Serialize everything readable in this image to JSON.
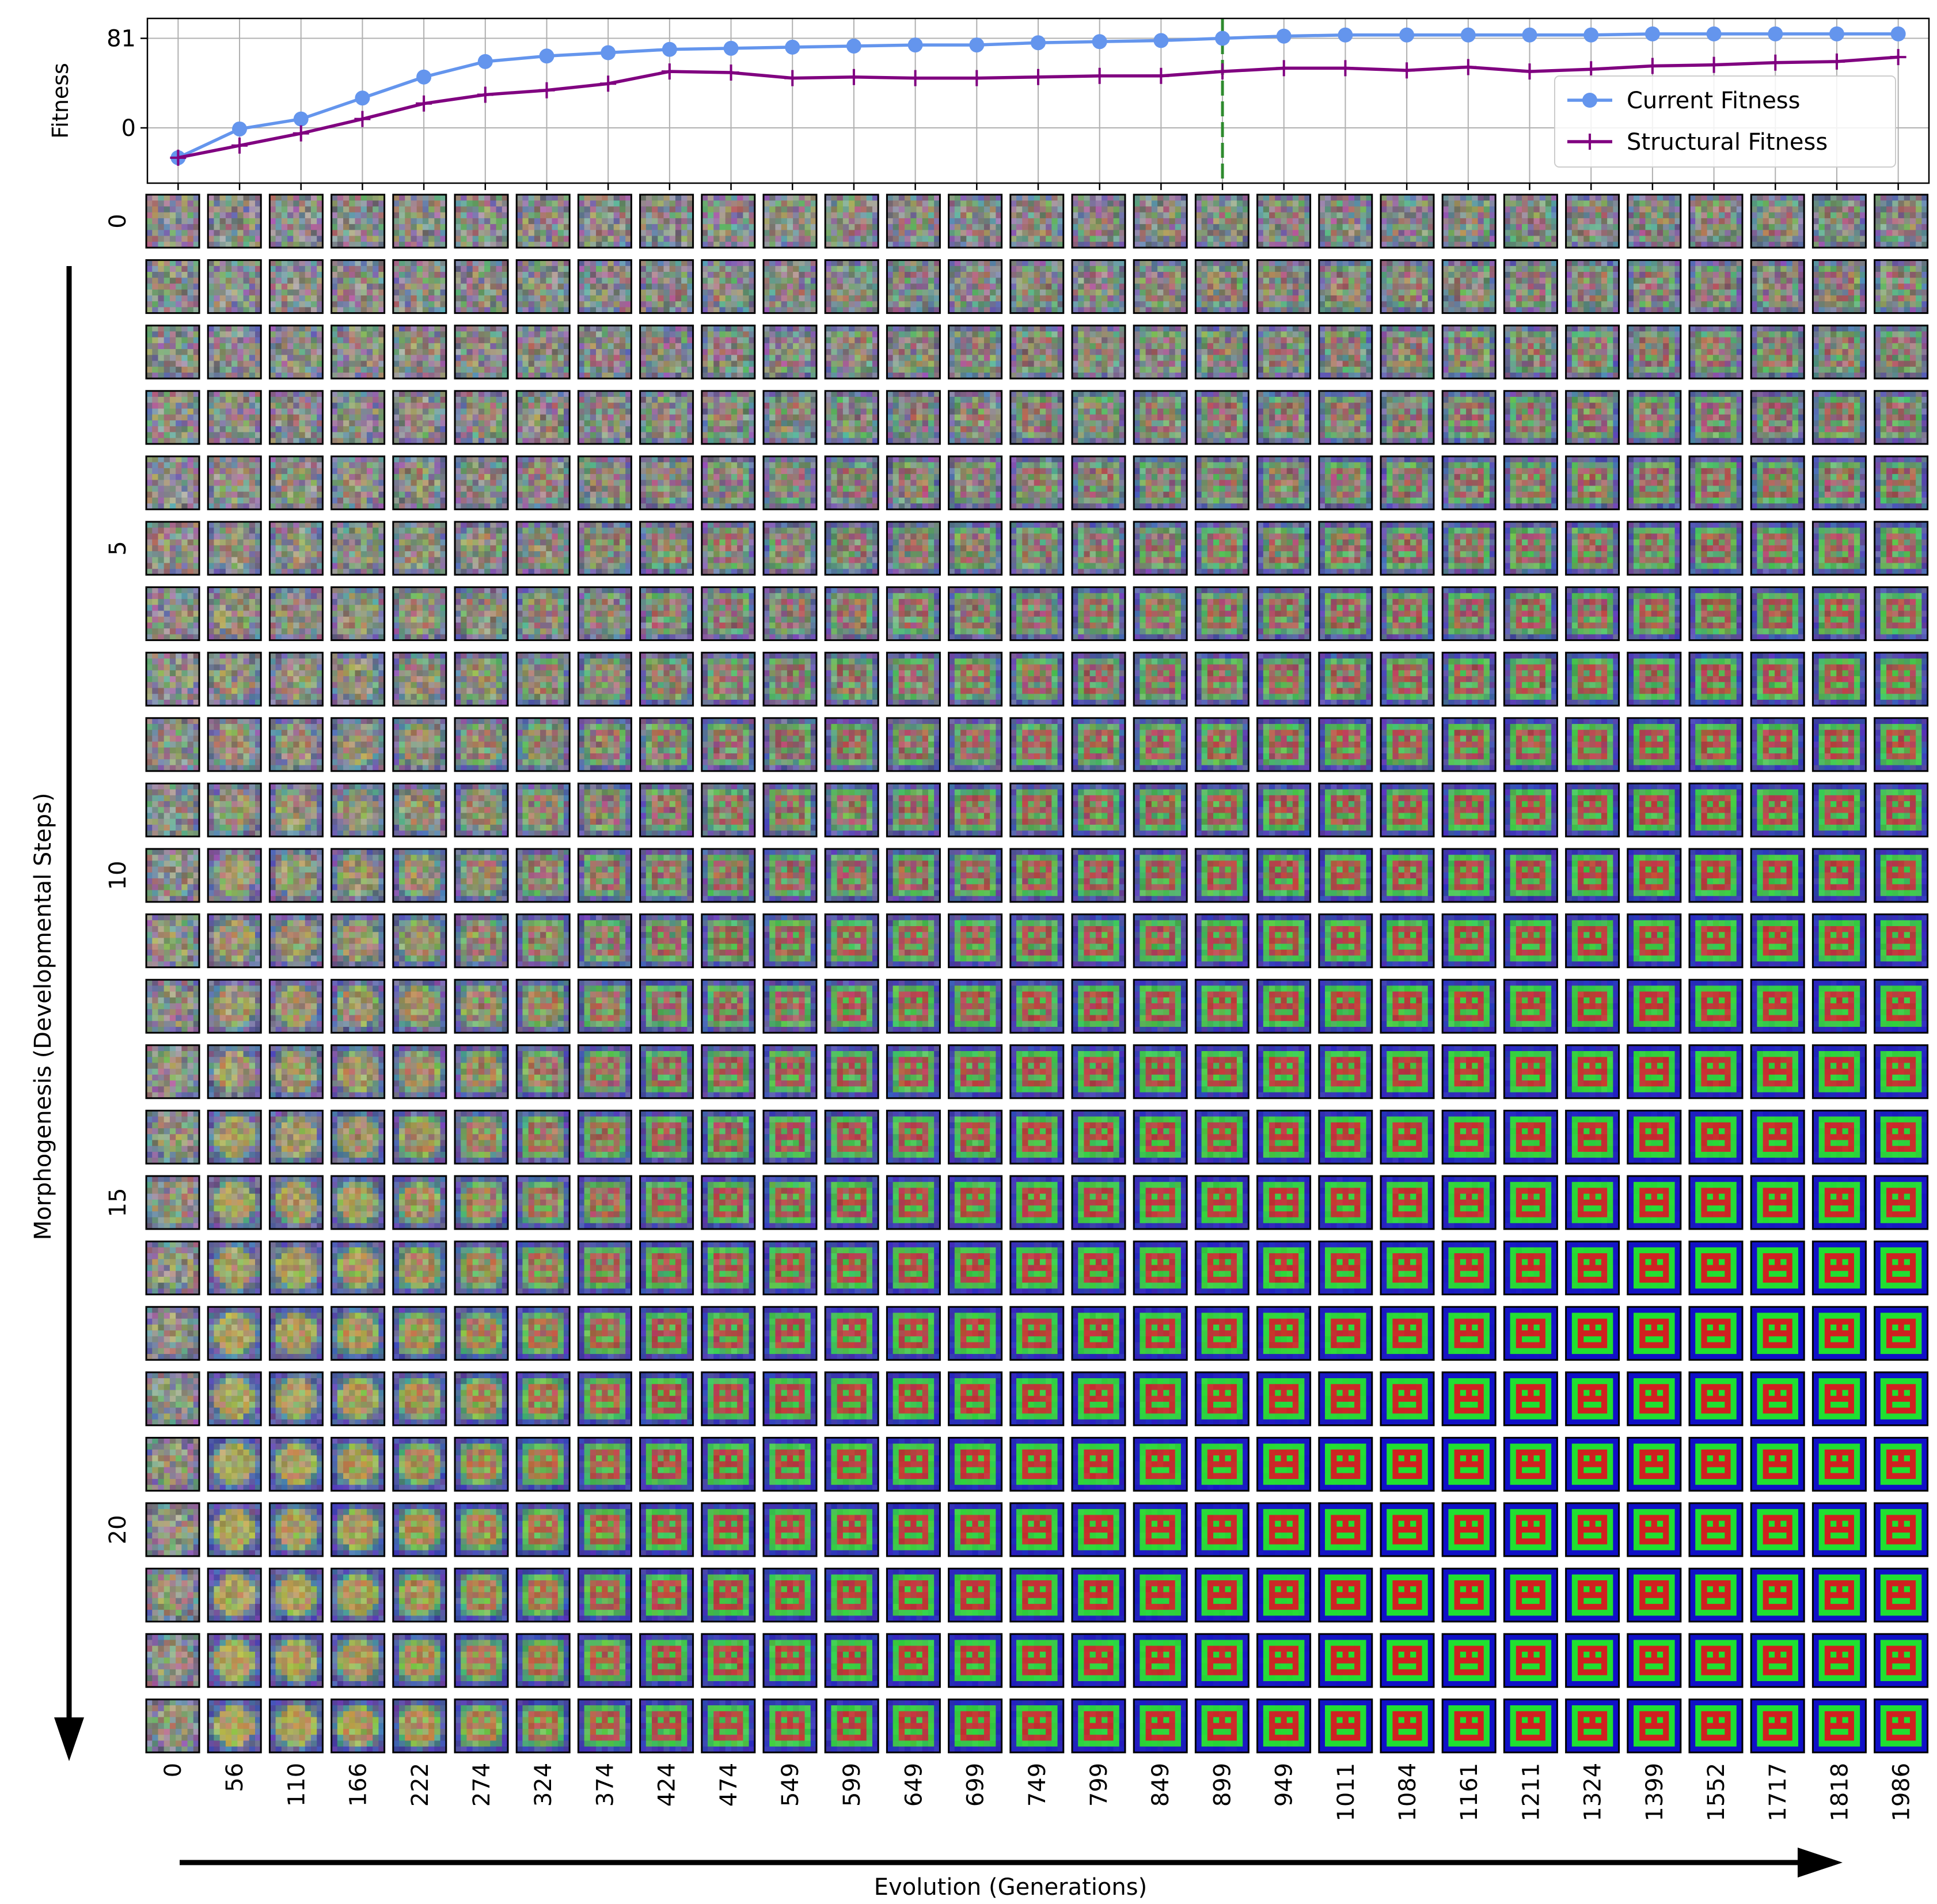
{
  "chart_data": [
    {
      "type": "line",
      "title": "",
      "xlabel": "",
      "ylabel": "Fitness",
      "y_tick_labels": [
        "0",
        "81"
      ],
      "y_ticks": [
        0,
        81
      ],
      "ylim": [
        -50,
        99
      ],
      "grid": true,
      "legend_position": "right",
      "x_index_range": [
        -0.5,
        28.5
      ],
      "x": [
        0,
        56,
        110,
        166,
        222,
        274,
        324,
        374,
        424,
        474,
        549,
        599,
        649,
        699,
        749,
        799,
        849,
        899,
        949,
        1011,
        1084,
        1161,
        1211,
        1324,
        1399,
        1552,
        1717,
        1818,
        1986
      ],
      "series": [
        {
          "name": "Current Fitness",
          "color": "#6495ED",
          "marker": "circle",
          "values": [
            -27,
            -1,
            8,
            27,
            46,
            60,
            65,
            68,
            71,
            72,
            73,
            74,
            75,
            75,
            77,
            78,
            79,
            81,
            83,
            84,
            84,
            84,
            84,
            84,
            85,
            85,
            85,
            85,
            85
          ]
        },
        {
          "name": "Structural Fitness",
          "color": "#800080",
          "marker": "plus",
          "values": [
            -27,
            -16,
            -5,
            8,
            22,
            30,
            34,
            40,
            51,
            50,
            45,
            46,
            45,
            45,
            46,
            47,
            47,
            51,
            54,
            54,
            52,
            55,
            51,
            53,
            56,
            57,
            59,
            60,
            64
          ]
        }
      ],
      "highlight_line": {
        "x_index": 17,
        "x": 899,
        "color": "#2E8B2E",
        "style": "dashed"
      }
    },
    {
      "type": "heatmap",
      "description_of_cells": "grid of 24 developmental steps by 29 generations, each cell a small pixel-art image of a morphogenesis state",
      "xlabel": "Evolution (Generations)",
      "ylabel": "Morphogenesis (Developmental Steps)",
      "x_tick_labels": [
        "0",
        "56",
        "110",
        "166",
        "222",
        "274",
        "324",
        "374",
        "424",
        "474",
        "549",
        "599",
        "649",
        "699",
        "749",
        "799",
        "849",
        "899",
        "949",
        "1011",
        "1084",
        "1161",
        "1211",
        "1324",
        "1399",
        "1552",
        "1717",
        "1818",
        "1986"
      ],
      "y_tick_labels": [
        "0",
        "5",
        "10",
        "15",
        "20"
      ],
      "y_tick_rows": [
        0,
        5,
        10,
        15,
        20
      ],
      "rows": 24,
      "columns": 29,
      "cell_palette": {
        "noise_gray": "#8a8a8a",
        "background_blue": "#1010c8",
        "ring_green": "#20e030",
        "face_red": "#d02020",
        "body_yellow": "#f0e020",
        "teal": "#30b0c0"
      }
    }
  ]
}
